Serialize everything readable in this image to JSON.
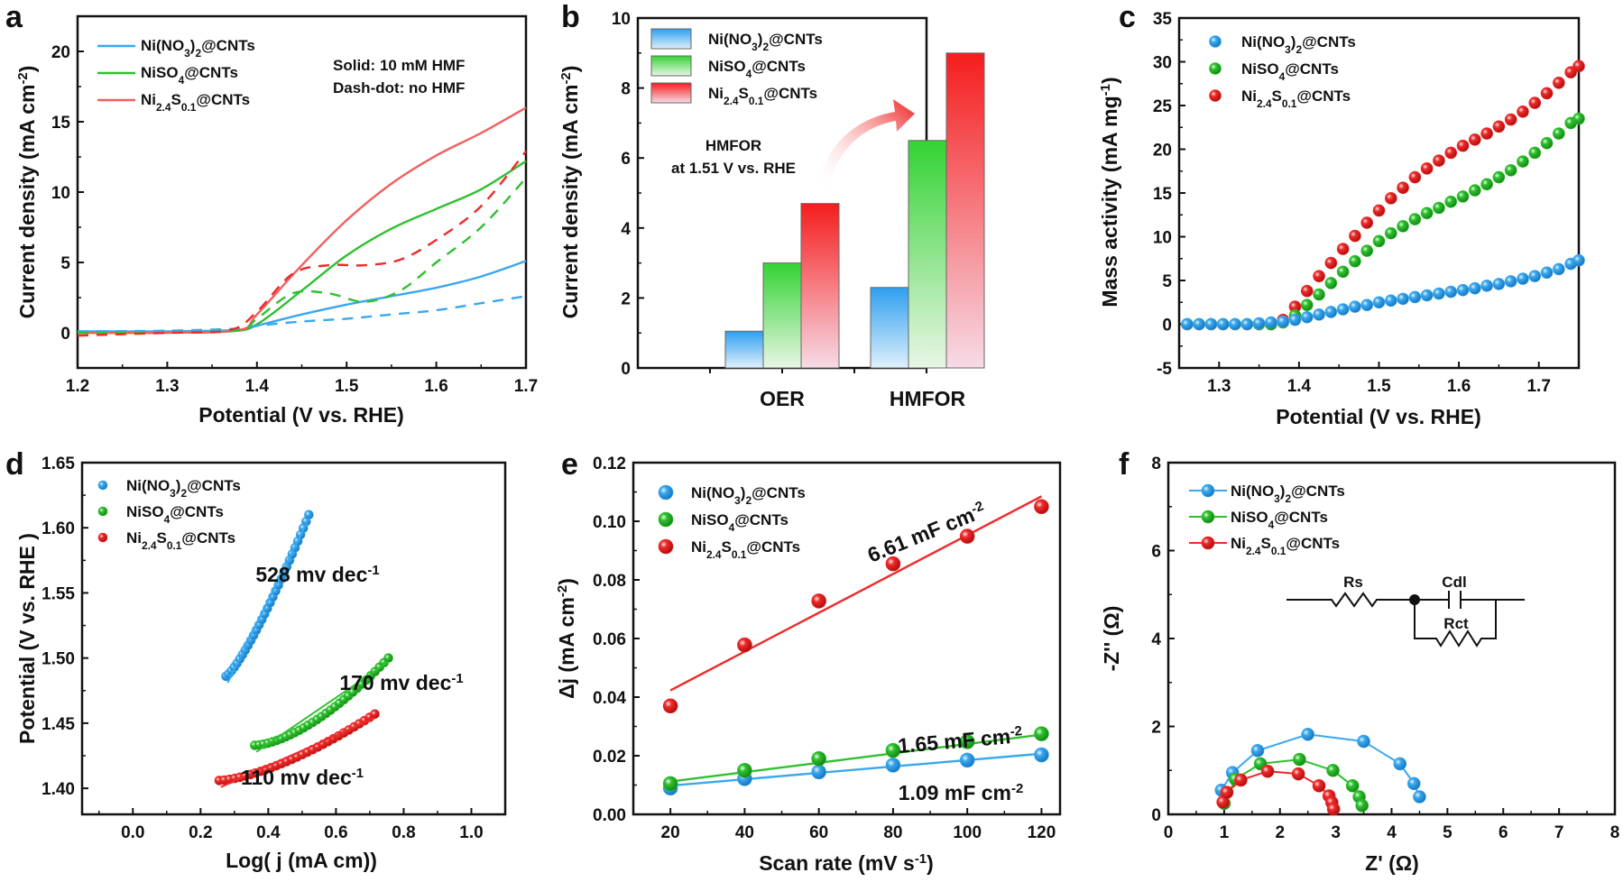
{
  "figure": {
    "panel_letters": [
      "a",
      "b",
      "c",
      "d",
      "e",
      "f"
    ]
  },
  "legend_names": {
    "nitrate": {
      "main": "Ni(NO",
      "sub1": "3",
      "mid": ")",
      "sub2": "2",
      "tail": "@CNTs"
    },
    "sulfate": {
      "main": "NiSO",
      "sub1": "4",
      "tail": "@CNTs"
    },
    "nis": {
      "main": "Ni",
      "sub1": "2.4",
      "mid": "S",
      "sub2": "0.1",
      "tail": "@CNTs"
    }
  },
  "colors": {
    "blue": "#39a8ef",
    "green": "#2fc02f",
    "red": "#ef2a2a",
    "axis": "#111111"
  },
  "chart_data": [
    {
      "panel": "a",
      "type": "line",
      "xlabel": "Potential (V vs. RHE)",
      "ylabel": "Current density (mA cm-2)",
      "xlim": [
        1.2,
        1.7
      ],
      "ylim": [
        -2.5,
        22.5
      ],
      "xticks": [
        "1.2",
        "1.3",
        "1.4",
        "1.5",
        "1.6",
        "1.7"
      ],
      "yticks": [
        "0",
        "5",
        "10",
        "15",
        "20"
      ],
      "annotations": [
        "Solid: 10 mM HMF",
        "Dash-dot: no HMF"
      ],
      "legend": [
        "Ni(NO3)2@CNTs",
        "NiSO4@CNTs",
        "Ni2.4S0.1@CNTs"
      ],
      "series": [
        {
          "name": "Ni(NO3)2@CNTs",
          "style": "solid",
          "color": "blue",
          "x": [
            1.2,
            1.3,
            1.38,
            1.4,
            1.45,
            1.5,
            1.55,
            1.6,
            1.65,
            1.7
          ],
          "y": [
            0.1,
            0.1,
            0.2,
            0.5,
            1.3,
            2.0,
            2.6,
            3.2,
            4.0,
            5.1
          ]
        },
        {
          "name": "NiSO4@CNTs",
          "style": "solid",
          "color": "green",
          "x": [
            1.2,
            1.3,
            1.37,
            1.4,
            1.45,
            1.5,
            1.55,
            1.6,
            1.65,
            1.7
          ],
          "y": [
            0.0,
            0.0,
            0.1,
            0.6,
            3.0,
            5.5,
            7.4,
            8.8,
            10.2,
            12.2
          ]
        },
        {
          "name": "Ni2.4S0.1@CNTs",
          "style": "solid",
          "color": "red",
          "x": [
            1.2,
            1.3,
            1.38,
            1.4,
            1.45,
            1.5,
            1.55,
            1.6,
            1.65,
            1.7
          ],
          "y": [
            0.0,
            0.0,
            0.2,
            1.3,
            4.8,
            8.0,
            10.6,
            12.6,
            14.2,
            16.0
          ]
        },
        {
          "name": "Ni(NO3)2@CNTs",
          "style": "dash",
          "color": "blue",
          "x": [
            1.2,
            1.3,
            1.38,
            1.4,
            1.45,
            1.5,
            1.55,
            1.6,
            1.65,
            1.7
          ],
          "y": [
            0.1,
            0.15,
            0.3,
            0.5,
            0.8,
            1.0,
            1.3,
            1.6,
            2.1,
            2.6
          ]
        },
        {
          "name": "NiSO4@CNTs",
          "style": "dash",
          "color": "green",
          "x": [
            1.2,
            1.3,
            1.38,
            1.4,
            1.44,
            1.48,
            1.52,
            1.56,
            1.6,
            1.65,
            1.7
          ],
          "y": [
            0.0,
            0.0,
            0.2,
            1.0,
            2.8,
            2.8,
            2.2,
            3.0,
            5.0,
            7.5,
            11.0
          ]
        },
        {
          "name": "Ni2.4S0.1@CNTs",
          "style": "dash",
          "color": "red",
          "x": [
            1.2,
            1.3,
            1.37,
            1.4,
            1.44,
            1.48,
            1.52,
            1.56,
            1.6,
            1.65,
            1.7
          ],
          "y": [
            -0.2,
            0.0,
            0.2,
            1.5,
            4.2,
            4.8,
            4.8,
            5.2,
            6.6,
            9.0,
            12.9
          ]
        }
      ]
    },
    {
      "panel": "b",
      "type": "bar",
      "ylabel": "Current density (mA cm-2)",
      "ylim": [
        0,
        10
      ],
      "yticks": [
        "0",
        "2",
        "4",
        "6",
        "8",
        "10"
      ],
      "categories": [
        "OER",
        "HMFOR"
      ],
      "annotation": [
        "HMFOR",
        "at 1.51 V vs. RHE"
      ],
      "series": [
        {
          "name": "Ni(NO3)2@CNTs",
          "color": "blue",
          "values": [
            1.05,
            2.3
          ]
        },
        {
          "name": "NiSO4@CNTs",
          "color": "green",
          "values": [
            3.0,
            6.5
          ]
        },
        {
          "name": "Ni2.4S0.1@CNTs",
          "color": "red",
          "values": [
            4.7,
            9.0
          ]
        }
      ]
    },
    {
      "panel": "c",
      "type": "scatter",
      "xlabel": "Potential (V vs. RHE)",
      "ylabel": "Mass activity (mA mg-1)",
      "xlim": [
        1.25,
        1.75
      ],
      "ylim": [
        -5,
        35
      ],
      "xticks": [
        "1.3",
        "1.4",
        "1.5",
        "1.6",
        "1.7"
      ],
      "yticks": [
        "-5",
        "0",
        "5",
        "10",
        "15",
        "20",
        "25",
        "30",
        "35"
      ],
      "series": [
        {
          "name": "Ni(NO3)2@CNTs",
          "color": "blue",
          "onset": 1.37,
          "end_value": 7.3,
          "shape": "slow"
        },
        {
          "name": "NiSO4@CNTs",
          "color": "green",
          "onset": 1.38,
          "end_value": 23.5,
          "shape": "mid"
        },
        {
          "name": "Ni2.4S0.1@CNTs",
          "color": "red",
          "onset": 1.38,
          "end_value": 29.5,
          "shape": "fast"
        }
      ],
      "points": {
        "x": [
          1.26,
          1.275,
          1.29,
          1.305,
          1.32,
          1.335,
          1.35,
          1.365,
          1.38,
          1.395,
          1.41,
          1.425,
          1.44,
          1.455,
          1.47,
          1.485,
          1.5,
          1.515,
          1.53,
          1.545,
          1.56,
          1.575,
          1.59,
          1.605,
          1.62,
          1.635,
          1.65,
          1.665,
          1.68,
          1.695,
          1.71,
          1.725,
          1.74,
          1.75
        ],
        "blue": [
          0,
          0,
          0,
          0,
          0,
          0,
          0.1,
          0.2,
          0.3,
          0.5,
          0.8,
          1.1,
          1.4,
          1.7,
          2.0,
          2.2,
          2.5,
          2.7,
          2.9,
          3.1,
          3.3,
          3.5,
          3.7,
          3.9,
          4.1,
          4.4,
          4.6,
          4.9,
          5.2,
          5.5,
          5.9,
          6.3,
          6.9,
          7.3
        ],
        "green": [
          0,
          0,
          0,
          0,
          0,
          0,
          0,
          0,
          0.2,
          1.0,
          2.2,
          3.4,
          4.7,
          6.0,
          7.2,
          8.4,
          9.5,
          10.4,
          11.2,
          12.0,
          12.7,
          13.3,
          14.0,
          14.6,
          15.3,
          16.0,
          16.8,
          17.6,
          18.6,
          19.6,
          20.7,
          21.8,
          23.0,
          23.5
        ],
        "red": [
          0,
          0,
          0,
          0,
          0,
          0,
          0,
          0,
          0.5,
          2.0,
          3.8,
          5.5,
          7.0,
          8.6,
          10.1,
          11.6,
          13.0,
          14.4,
          15.6,
          16.8,
          17.8,
          18.7,
          19.6,
          20.4,
          21.1,
          21.8,
          22.6,
          23.4,
          24.3,
          25.3,
          26.4,
          27.6,
          28.8,
          29.5
        ]
      }
    },
    {
      "panel": "d",
      "type": "scatter",
      "xlabel": "Log( j  (mA cm-2))",
      "ylabel": "Potential (V vs. RHE )",
      "xlim": [
        -0.15,
        1.1
      ],
      "ylim": [
        1.38,
        1.65
      ],
      "xticks": [
        "0.0",
        "0.2",
        "0.4",
        "0.6",
        "0.8",
        "1.0"
      ],
      "yticks": [
        "1.40",
        "1.45",
        "1.50",
        "1.55",
        "1.60",
        "1.65"
      ],
      "series": [
        {
          "name": "Ni(NO3)2@CNTs",
          "color": "blue",
          "x_range": [
            0.275,
            0.52
          ],
          "y_range": [
            1.486,
            1.61
          ],
          "tafel_label": "528 mv dec-1"
        },
        {
          "name": "NiSO4@CNTs",
          "color": "green",
          "x_range": [
            0.36,
            0.755
          ],
          "y_range": [
            1.433,
            1.5
          ],
          "tafel_label": "170 mv dec-1"
        },
        {
          "name": "Ni2.4S0.1@CNTs",
          "color": "red",
          "x_range": [
            0.255,
            0.715
          ],
          "y_range": [
            1.406,
            1.457
          ],
          "tafel_label": "110 mv dec-1"
        }
      ]
    },
    {
      "panel": "e",
      "type": "scatter",
      "xlabel": "Scan rate (mV s-1)",
      "ylabel": "Δj (mA cm-2)",
      "xlim": [
        10,
        125
      ],
      "ylim": [
        0,
        0.12
      ],
      "xticks": [
        "20",
        "40",
        "60",
        "80",
        "100",
        "120"
      ],
      "yticks": [
        "0.00",
        "0.02",
        "0.04",
        "0.06",
        "0.08",
        "0.10",
        "0.12"
      ],
      "x": [
        20,
        40,
        60,
        80,
        100,
        120
      ],
      "series": [
        {
          "name": "Ni(NO3)2@CNTs",
          "color": "blue",
          "values": [
            0.009,
            0.0122,
            0.0145,
            0.0168,
            0.0185,
            0.0203
          ],
          "fit": [
            0.0098,
            0.0207
          ],
          "fit_label": "1.09 mF cm-2"
        },
        {
          "name": "NiSO4@CNTs",
          "color": "green",
          "values": [
            0.0105,
            0.015,
            0.019,
            0.0218,
            0.0248,
            0.0275
          ],
          "fit": [
            0.0112,
            0.0272
          ],
          "fit_label": "1.65 mF cm-2"
        },
        {
          "name": "Ni2.4S0.1@CNTs",
          "color": "red",
          "values": [
            0.037,
            0.0578,
            0.0728,
            0.0855,
            0.0949,
            0.105
          ],
          "fit": [
            0.0423,
            0.1085
          ],
          "fit_label": "6.61 mF cm-2"
        }
      ]
    },
    {
      "panel": "f",
      "type": "line",
      "xlabel": "Z' (Ω)",
      "ylabel": "-Z'' (Ω)",
      "xlim": [
        0,
        8
      ],
      "ylim": [
        0,
        8
      ],
      "xticks": [
        "0",
        "1",
        "2",
        "3",
        "4",
        "5",
        "6",
        "7",
        "8"
      ],
      "yticks": [
        "0",
        "2",
        "4",
        "6",
        "8"
      ],
      "circuit_labels": [
        "Rs",
        "Cdl",
        "Rct"
      ],
      "series": [
        {
          "name": "Ni(NO3)2@CNTs",
          "color": "blue",
          "x": [
            0.95,
            1.15,
            1.6,
            2.5,
            3.5,
            4.15,
            4.4,
            4.5
          ],
          "y": [
            0.55,
            0.95,
            1.45,
            1.82,
            1.66,
            1.15,
            0.7,
            0.4
          ]
        },
        {
          "name": "NiSO4@CNTs",
          "color": "green",
          "x": [
            1.0,
            1.2,
            1.65,
            2.35,
            2.95,
            3.3,
            3.42,
            3.47
          ],
          "y": [
            0.25,
            0.8,
            1.15,
            1.25,
            1.0,
            0.65,
            0.4,
            0.2
          ]
        },
        {
          "name": "Ni2.4S0.1@CNTs",
          "color": "red",
          "x": [
            0.98,
            1.05,
            1.3,
            1.78,
            2.33,
            2.7,
            2.88,
            2.93,
            2.96
          ],
          "y": [
            0.28,
            0.5,
            0.78,
            0.98,
            0.92,
            0.65,
            0.42,
            0.27,
            0.12
          ]
        }
      ]
    }
  ]
}
